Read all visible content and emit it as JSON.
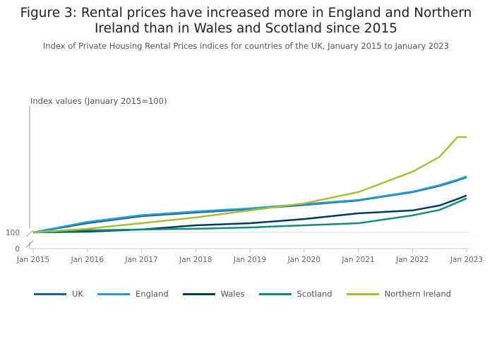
{
  "chart_data": {
    "type": "line",
    "title": "Figure 3: Rental prices have increased more in England and Northern Ireland than in Wales and Scotland since 2015",
    "subtitle": "Index of Private Housing Rental Prices indices for countries of the UK, January 2015 to January 2023",
    "ylabel": "Index values (January 2015=100)",
    "xlabel": "",
    "ylim": [
      100,
      148
    ],
    "y_axis_break": true,
    "y_ticks": [
      "100",
      "0"
    ],
    "x_ticks": [
      "Jan 2015",
      "Jan 2016",
      "Jan 2017",
      "Jan 2018",
      "Jan 2019",
      "Jan 2020",
      "Jan 2021",
      "Jan 2022",
      "Jan 2023"
    ],
    "x": [
      "2015-01",
      "2016-01",
      "2017-01",
      "2018-01",
      "2019-01",
      "2020-01",
      "2021-01",
      "2022-01",
      "2022-07",
      "2022-11",
      "2023-01"
    ],
    "legend_position": "bottom",
    "grid": false,
    "series": [
      {
        "name": "UK",
        "color": "#206095",
        "values": [
          100,
          103.5,
          106.2,
          107.6,
          108.9,
          110.5,
          112.2,
          115.4,
          117.8,
          119.9,
          121.1
        ]
      },
      {
        "name": "England",
        "color": "#27a0cc",
        "values": [
          100,
          104,
          106.6,
          108,
          109.2,
          110.8,
          112.4,
          115.6,
          118.1,
          120.2,
          121.4
        ]
      },
      {
        "name": "Wales",
        "color": "#003c57",
        "values": [
          100,
          100.3,
          101.1,
          102.7,
          103.5,
          105.1,
          107.3,
          108.4,
          110.3,
          112.8,
          114.1
        ]
      },
      {
        "name": "Scotland",
        "color": "#118c7b",
        "values": [
          100,
          100.8,
          101.1,
          101.4,
          101.9,
          102.7,
          103.5,
          106.5,
          108.6,
          111.5,
          113
        ]
      },
      {
        "name": "Northern Ireland",
        "color": "#a8bd3a",
        "values": [
          100,
          101.4,
          103.5,
          105.7,
          108.4,
          111.1,
          115.4,
          123.2,
          128.9,
          136.5,
          136.5
        ]
      }
    ]
  }
}
